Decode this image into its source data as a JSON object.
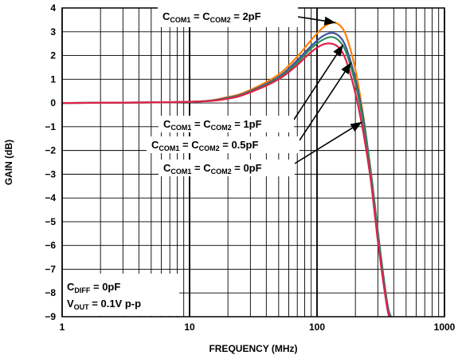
{
  "chart_data": {
    "type": "line",
    "title": "",
    "xlabel": "FREQUENCY (MHz)",
    "ylabel": "GAIN (dB)",
    "x_scale": "log",
    "xlim": [
      1,
      1000
    ],
    "ylim": [
      -9,
      4
    ],
    "x_ticks": [
      "1",
      "10",
      "100",
      "1000"
    ],
    "y_ticks": [
      "4",
      "3",
      "2",
      "1",
      "0",
      "−1",
      "−2",
      "−3",
      "−4",
      "−5",
      "−6",
      "−7",
      "−8",
      "−9"
    ],
    "grid": true,
    "series": [
      {
        "color": "#ff8000",
        "x": [
          1,
          10,
          20,
          30,
          50,
          70,
          90,
          110,
          130,
          150,
          170,
          200,
          230,
          260,
          280,
          300,
          330,
          360,
          380
        ],
        "y": [
          0,
          0.05,
          0.25,
          0.55,
          1.2,
          1.95,
          2.65,
          3.15,
          3.38,
          3.28,
          2.8,
          1.4,
          -0.5,
          -2.6,
          -4.0,
          -5.4,
          -7.2,
          -8.6,
          -9
        ]
      },
      {
        "color": "#3c50a0",
        "x": [
          1,
          10,
          20,
          30,
          50,
          70,
          90,
          110,
          130,
          150,
          170,
          200,
          230,
          260,
          280,
          300,
          330,
          360,
          380
        ],
        "y": [
          0,
          0.05,
          0.22,
          0.5,
          1.1,
          1.8,
          2.4,
          2.8,
          2.95,
          2.8,
          2.3,
          1.0,
          -0.6,
          -2.6,
          -4.0,
          -5.4,
          -7.2,
          -8.6,
          -9
        ]
      },
      {
        "color": "#2e8b57",
        "x": [
          1,
          10,
          20,
          30,
          50,
          70,
          90,
          110,
          130,
          150,
          170,
          200,
          230,
          260,
          280,
          300,
          330,
          360,
          380
        ],
        "y": [
          0,
          0.05,
          0.2,
          0.48,
          1.05,
          1.7,
          2.3,
          2.65,
          2.78,
          2.6,
          2.1,
          0.8,
          -0.8,
          -2.7,
          -4.1,
          -5.5,
          -7.3,
          -8.7,
          -9
        ]
      },
      {
        "color": "#e0204a",
        "x": [
          1,
          10,
          20,
          30,
          50,
          70,
          90,
          110,
          130,
          150,
          170,
          200,
          230,
          260,
          280,
          300,
          330,
          360,
          375
        ],
        "y": [
          0,
          0.05,
          0.18,
          0.45,
          1.0,
          1.6,
          2.15,
          2.45,
          2.5,
          2.3,
          1.75,
          0.4,
          -1.2,
          -3.0,
          -4.4,
          -5.8,
          -7.5,
          -8.8,
          -9
        ]
      }
    ],
    "annotations": [
      {
        "label": "2pF",
        "arrow_to": [
          140,
          3.38
        ]
      },
      {
        "label": "1pF",
        "arrow_to": [
          160,
          2.45
        ]
      },
      {
        "label": "0.5pF",
        "arrow_to": [
          185,
          1.7
        ]
      },
      {
        "label": "0pF",
        "arrow_to": [
          225,
          -0.8
        ]
      }
    ],
    "conditions": [
      {
        "sym": "C",
        "sub": "DIFF",
        "rest": " = 0pF"
      },
      {
        "sym": "V",
        "sub": "OUT",
        "rest": " = 0.1V p-p"
      }
    ]
  }
}
